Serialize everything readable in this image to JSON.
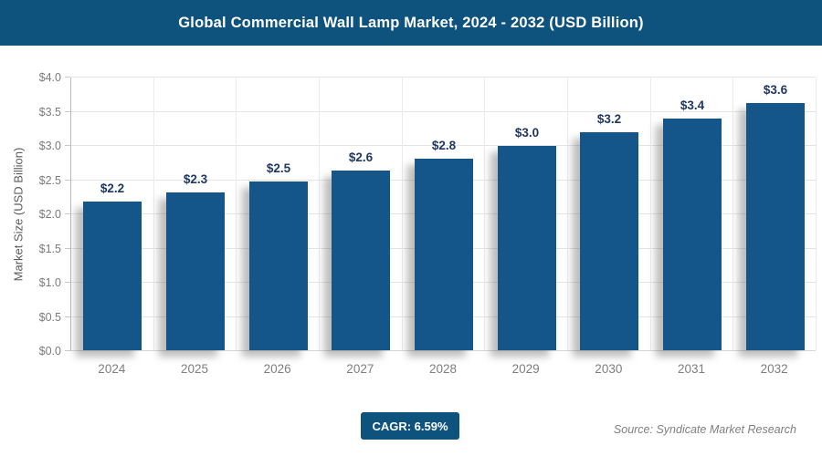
{
  "header": {
    "title": "Global Commercial Wall Lamp Market, 2024 - 2032 (USD Billion)",
    "bg_color": "#0e537d",
    "text_color": "#ffffff"
  },
  "chart_data": {
    "type": "bar",
    "title": "Global Commercial Wall Lamp Market, 2024 - 2032 (USD Billion)",
    "categories": [
      "2024",
      "2025",
      "2026",
      "2027",
      "2028",
      "2029",
      "2030",
      "2031",
      "2032"
    ],
    "values": [
      2.17,
      2.31,
      2.46,
      2.63,
      2.8,
      2.98,
      3.18,
      3.39,
      3.61
    ],
    "bar_labels": [
      "$2.2",
      "$2.3",
      "$2.5",
      "$2.6",
      "$2.8",
      "$3.0",
      "$3.2",
      "$3.4",
      "$3.6"
    ],
    "xlabel": "",
    "ylabel": "Market Size (USD Billion)",
    "ylim": [
      0.0,
      4.0
    ],
    "ytick_step": 0.5,
    "ytick_labels": [
      "$0.0",
      "$0.5",
      "$1.0",
      "$1.5",
      "$2.0",
      "$2.5",
      "$3.0",
      "$3.5",
      "$4.0"
    ],
    "grid": true,
    "legend": false,
    "bar_color": "#15568a",
    "bar_value_label_color": "#1f3864",
    "tick_label_color": "#7b7b7b",
    "gridline_color": "#e4e4e4"
  },
  "footer": {
    "cagr_label": "CAGR: 6.59%",
    "cagr_bg_color": "#0e537d",
    "source": "Source: Syndicate Market Research"
  }
}
